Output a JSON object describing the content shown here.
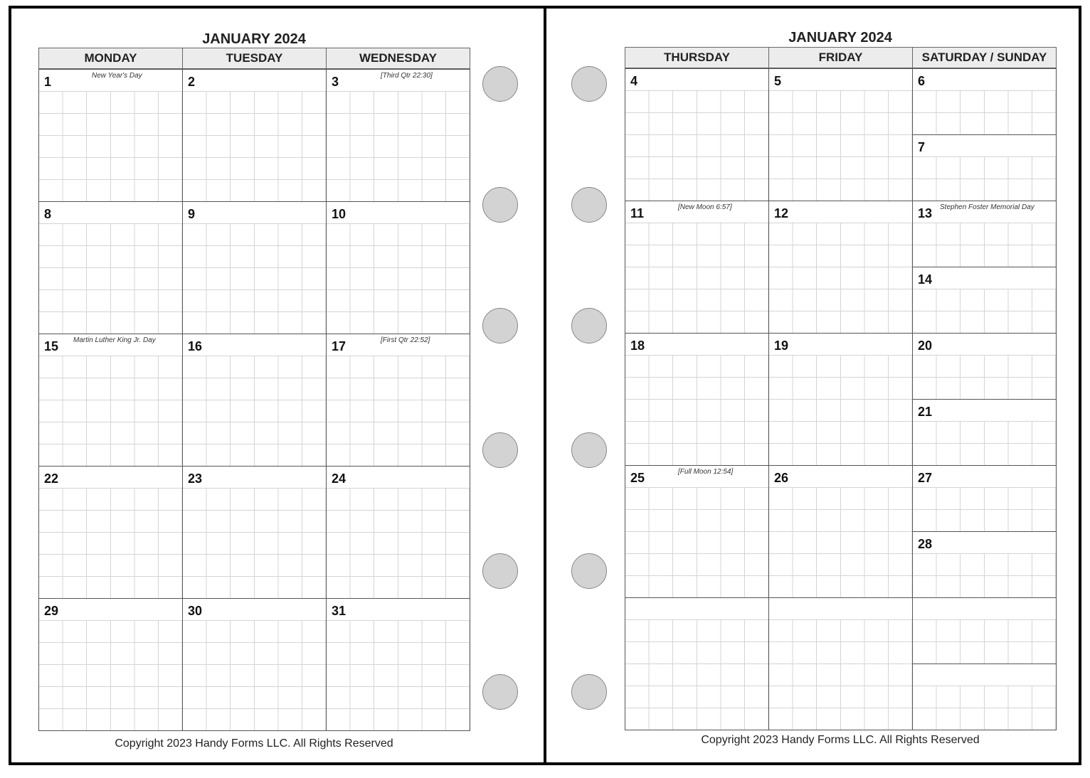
{
  "left_page": {
    "title": "JANUARY 2024",
    "headers": [
      "MONDAY",
      "TUESDAY",
      "WEDNESDAY"
    ],
    "weeks": [
      [
        {
          "day": "1",
          "note": "New Year's Day"
        },
        {
          "day": "2",
          "note": ""
        },
        {
          "day": "3",
          "note": "[Third Qtr 22:30]"
        }
      ],
      [
        {
          "day": "8",
          "note": ""
        },
        {
          "day": "9",
          "note": ""
        },
        {
          "day": "10",
          "note": ""
        }
      ],
      [
        {
          "day": "15",
          "note": "Martin Luther King Jr. Day"
        },
        {
          "day": "16",
          "note": ""
        },
        {
          "day": "17",
          "note": "[First Qtr 22:52]"
        }
      ],
      [
        {
          "day": "22",
          "note": ""
        },
        {
          "day": "23",
          "note": ""
        },
        {
          "day": "24",
          "note": ""
        }
      ],
      [
        {
          "day": "29",
          "note": ""
        },
        {
          "day": "30",
          "note": ""
        },
        {
          "day": "31",
          "note": ""
        }
      ]
    ],
    "copyright": "Copyright 2023 Handy Forms LLC. All Rights Reserved"
  },
  "right_page": {
    "title": "JANUARY 2024",
    "headers": [
      "THURSDAY",
      "FRIDAY",
      "SATURDAY / SUNDAY"
    ],
    "weeks": [
      [
        {
          "day": "4",
          "note": ""
        },
        {
          "day": "5",
          "note": ""
        },
        {
          "day": "6",
          "note": ""
        },
        {
          "day": "7",
          "note": ""
        }
      ],
      [
        {
          "day": "11",
          "note": "[New Moon 6:57]"
        },
        {
          "day": "12",
          "note": ""
        },
        {
          "day": "13",
          "note": "Stephen Foster Memorial Day"
        },
        {
          "day": "14",
          "note": ""
        }
      ],
      [
        {
          "day": "18",
          "note": ""
        },
        {
          "day": "19",
          "note": ""
        },
        {
          "day": "20",
          "note": ""
        },
        {
          "day": "21",
          "note": ""
        }
      ],
      [
        {
          "day": "25",
          "note": "[Full Moon 12:54]"
        },
        {
          "day": "26",
          "note": ""
        },
        {
          "day": "27",
          "note": ""
        },
        {
          "day": "28",
          "note": ""
        }
      ],
      [
        {
          "day": "",
          "note": ""
        },
        {
          "day": "",
          "note": ""
        },
        {
          "day": "",
          "note": ""
        },
        {
          "day": "",
          "note": ""
        }
      ]
    ],
    "copyright": "Copyright 2023 Handy Forms LLC. All Rights Reserved"
  },
  "colors": {
    "header_bg": "#ececec",
    "hole": "#d3d3d3",
    "grid": "#d4d4d4"
  }
}
